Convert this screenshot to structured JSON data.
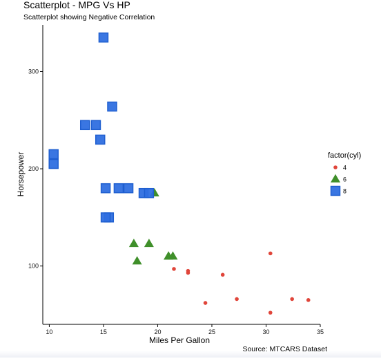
{
  "chart_data": {
    "type": "scatter",
    "title": "Scatterplot - MPG Vs HP",
    "subtitle": "Scatterplot showing Negative Correlation",
    "xlabel": "Miles Per Gallon",
    "ylabel": "Horsepower",
    "caption": "Source: MTCARS Dataset",
    "xlim": [
      9.4,
      35
    ],
    "ylim": [
      40,
      348
    ],
    "xticks": [
      10,
      15,
      20,
      25,
      30,
      35
    ],
    "yticks": [
      100,
      200,
      300
    ],
    "grid": false,
    "legend": {
      "title": "factor(cyl)",
      "placement": "right"
    },
    "series": [
      {
        "name": "4",
        "marker": "circle",
        "color": "#e0453a",
        "points": [
          [
            22.8,
            93
          ],
          [
            24.4,
            62
          ],
          [
            22.8,
            95
          ],
          [
            32.4,
            66
          ],
          [
            30.4,
            52
          ],
          [
            33.9,
            65
          ],
          [
            21.5,
            97
          ],
          [
            27.3,
            66
          ],
          [
            26.0,
            91
          ],
          [
            30.4,
            113
          ],
          [
            21.4,
            109
          ]
        ]
      },
      {
        "name": "6",
        "marker": "triangle",
        "color": "#3f8f2a",
        "points": [
          [
            21.0,
            110
          ],
          [
            21.0,
            110
          ],
          [
            21.4,
            110
          ],
          [
            18.1,
            105
          ],
          [
            19.2,
            123
          ],
          [
            17.8,
            123
          ],
          [
            19.7,
            175
          ]
        ]
      },
      {
        "name": "8",
        "marker": "square",
        "color": "#2f6fe0",
        "points": [
          [
            18.7,
            175
          ],
          [
            14.3,
            245
          ],
          [
            16.4,
            180
          ],
          [
            17.3,
            180
          ],
          [
            15.2,
            180
          ],
          [
            10.4,
            205
          ],
          [
            10.4,
            215
          ],
          [
            14.7,
            230
          ],
          [
            15.5,
            150
          ],
          [
            15.2,
            150
          ],
          [
            13.3,
            245
          ],
          [
            19.2,
            175
          ],
          [
            15.8,
            264
          ],
          [
            15.0,
            335
          ]
        ]
      }
    ]
  }
}
